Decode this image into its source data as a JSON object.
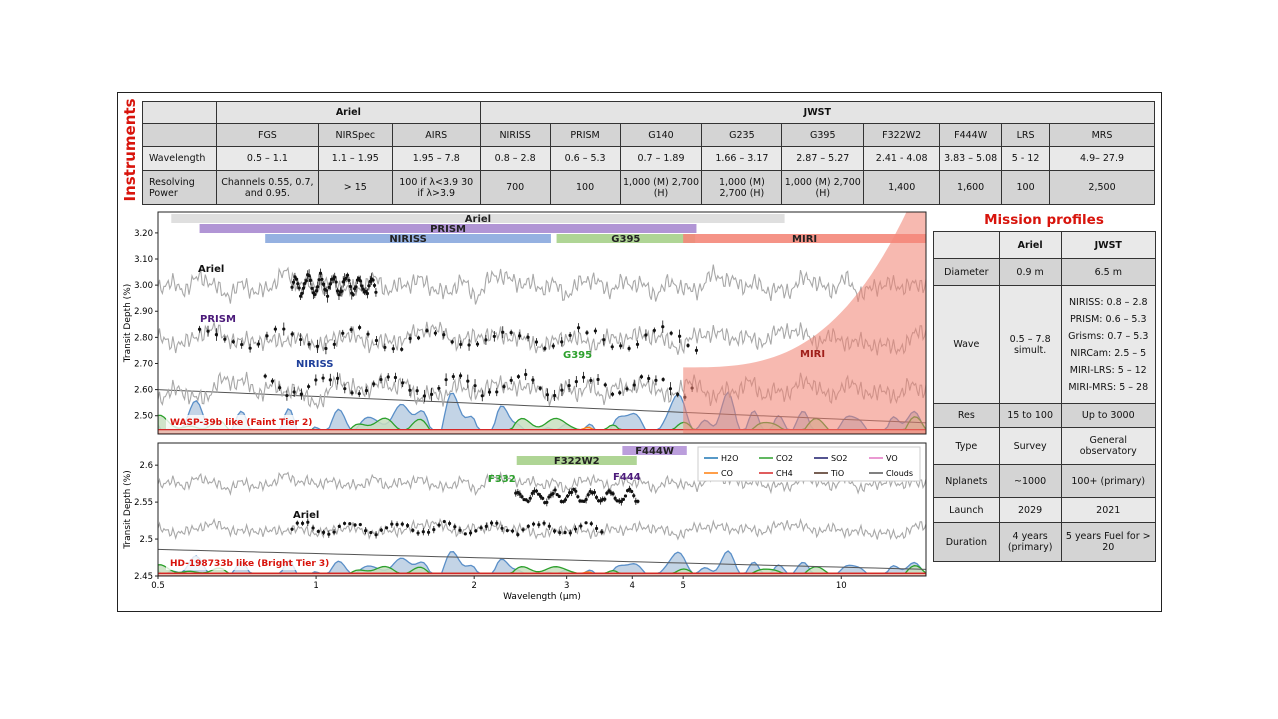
{
  "instruments": {
    "title": "Instruments",
    "groups": [
      {
        "name": "Ariel",
        "span": 3
      },
      {
        "name": "JWST",
        "span": 9
      }
    ],
    "columns": [
      "FGS",
      "NIRSpec",
      "AIRS",
      "NIRISS",
      "PRISM",
      "G140",
      "G235",
      "G395",
      "F322W2",
      "F444W",
      "LRS",
      "MRS"
    ],
    "rows": [
      {
        "label": "Wavelength",
        "values": [
          "0.5 – 1.1",
          "1.1 – 1.95",
          "1.95 – 7.8",
          "0.8 – 2.8",
          "0.6 – 5.3",
          "0.7 – 1.89",
          "1.66 – 3.17",
          "2.87 – 5.27",
          "2.41 - 4.08",
          "3.83 – 5.08",
          "5 - 12",
          "4.9– 27.9"
        ]
      },
      {
        "label": "Resolving Power",
        "values": [
          "Channels 0.55, 0.7, and 0.95.",
          "> 15",
          "100 if λ<3.9 30 if λ>3.9",
          "700",
          "100",
          "1,000 (M) 2,700 (H)",
          "1,000 (M) 2,700 (H)",
          "1,000 (M) 2,700 (H)",
          "1,400",
          "1,600",
          "100",
          "2,500"
        ]
      }
    ]
  },
  "mission": {
    "title": "Mission profiles",
    "header": [
      "",
      "Ariel",
      "JWST"
    ],
    "rows": [
      [
        "Diameter",
        "0.9 m",
        "6.5 m"
      ],
      [
        "Wave",
        "0.5 – 7.8 simult.",
        "NIRISS: 0.8 – 2.8 PRISM: 0.6 – 5.3 Grisms: 0.7 – 5.3 NIRCam: 2.5 – 5 MIRI-LRS: 5 – 12 MIRI-MRS: 5 – 28"
      ],
      [
        "Res",
        "15 to 100",
        "Up to 3000"
      ],
      [
        "Type",
        "Survey",
        "General observatory"
      ],
      [
        "Nplanets",
        "~1000",
        "100+ (primary)"
      ],
      [
        "Launch",
        "2029",
        "2021"
      ],
      [
        "Duration",
        "4 years (primary)",
        "5 years Fuel for > 20"
      ]
    ]
  },
  "chart_data": [
    {
      "type": "line",
      "title": "",
      "xlabel": "",
      "ylabel": "Transit Depth (%)",
      "xscale": "log",
      "xlim": [
        0.5,
        14.5
      ],
      "ylim": [
        2.43,
        3.28
      ],
      "yticks": [
        2.5,
        2.6,
        2.7,
        2.8,
        2.9,
        3.0,
        3.1,
        3.2
      ],
      "ytick_labels": [
        "2.50",
        "2.60",
        "2.70",
        "2.80",
        "2.90",
        "3.00",
        "3.10",
        "3.20"
      ],
      "bands": [
        {
          "label": "Ariel",
          "x0": 0.53,
          "x1": 7.8,
          "color": "#dcdcdc"
        },
        {
          "label": "PRISM",
          "x0": 0.6,
          "x1": 5.3,
          "color": "#a98ad0"
        },
        {
          "label": "NIRISS",
          "x0": 0.8,
          "x1": 2.8,
          "color": "#8aa8de"
        },
        {
          "label": "G395",
          "x0": 2.87,
          "x1": 5.27,
          "color": "#a6d08a"
        },
        {
          "label": "MIRI",
          "x0": 5.0,
          "x1": 14.5,
          "color": "#f4877a"
        }
      ],
      "annotations": [
        {
          "text": "Ariel",
          "color": "#111111"
        },
        {
          "text": "PRISM",
          "color": "#4b1a7a"
        },
        {
          "text": "NIRISS",
          "color": "#1f3f9a"
        },
        {
          "text": "G395",
          "color": "#2ca02c"
        },
        {
          "text": "MIRI",
          "color": "#a0201a"
        },
        {
          "text": "WASP-39b like (Faint Tier 2)",
          "color": "#d8140c"
        }
      ],
      "series": [
        {
          "offset": 3.0,
          "color": "#aaaaaa"
        },
        {
          "offset": 2.8,
          "color": "#aaaaaa"
        },
        {
          "offset": 2.6,
          "color": "#aaaaaa"
        }
      ]
    },
    {
      "type": "line",
      "title": "",
      "xlabel": "Wavelength (μm)",
      "ylabel": "Transit Depth (%)",
      "xscale": "log",
      "xlim": [
        0.5,
        14.5
      ],
      "ylim": [
        2.45,
        2.63
      ],
      "xticks": [
        0.5,
        1,
        2,
        3,
        4,
        5,
        10
      ],
      "xtick_labels": [
        "0.5",
        "1",
        "2",
        "3",
        "4",
        "5",
        "10"
      ],
      "yticks": [
        2.45,
        2.5,
        2.55,
        2.6
      ],
      "ytick_labels": [
        "2.45",
        "2.5",
        "2.55",
        "2.6"
      ],
      "bands": [
        {
          "label": "F444W",
          "x0": 3.83,
          "x1": 5.08,
          "color": "#b493d8"
        },
        {
          "label": "F322W2",
          "x0": 2.41,
          "x1": 4.08,
          "color": "#a6d08a"
        }
      ],
      "annotations": [
        {
          "text": "F332",
          "color": "#2ca02c"
        },
        {
          "text": "F444",
          "color": "#4b1a7a"
        },
        {
          "text": "Ariel",
          "color": "#111111"
        },
        {
          "text": "HD-198733b like (Bright Tier 3)",
          "color": "#d8140c"
        }
      ],
      "legend": {
        "placement": "top-right",
        "entries": [
          {
            "name": "H2O",
            "color": "#1f77b4"
          },
          {
            "name": "CO2",
            "color": "#2ca02c"
          },
          {
            "name": "SO2",
            "color": "#1a1a6a"
          },
          {
            "name": "VO",
            "color": "#e377c2"
          },
          {
            "name": "CO",
            "color": "#ff7f0e"
          },
          {
            "name": "CH4",
            "color": "#d62728"
          },
          {
            "name": "TiO",
            "color": "#4b2a1a"
          },
          {
            "name": "Clouds",
            "color": "#555555"
          }
        ]
      }
    }
  ]
}
